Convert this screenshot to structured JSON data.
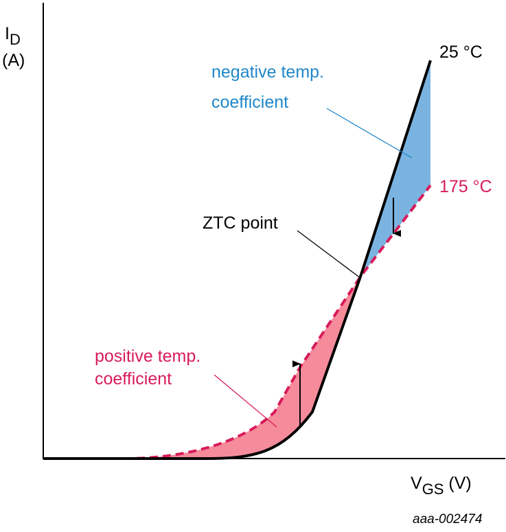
{
  "axes": {
    "y_label_main": "I",
    "y_label_sub": "D",
    "y_unit": "(A)",
    "x_label_main": "V",
    "x_label_sub": "GS",
    "x_unit": " (V)"
  },
  "curves": {
    "cold_label": "25 °C",
    "hot_label": "175 °C"
  },
  "annotations": {
    "negative_line1": "negative temp.",
    "negative_line2": "coefficient",
    "positive_line1": "positive temp.",
    "positive_line2": "coefficient",
    "ztc": "ZTC point"
  },
  "figure_code": "aaa-002474",
  "colors": {
    "negative_fill": "#7ab3e0",
    "positive_fill": "#f58b9b",
    "hot_curve": "#d81b5a",
    "negative_text": "#1f87c8",
    "cold_curve": "#000000"
  }
}
